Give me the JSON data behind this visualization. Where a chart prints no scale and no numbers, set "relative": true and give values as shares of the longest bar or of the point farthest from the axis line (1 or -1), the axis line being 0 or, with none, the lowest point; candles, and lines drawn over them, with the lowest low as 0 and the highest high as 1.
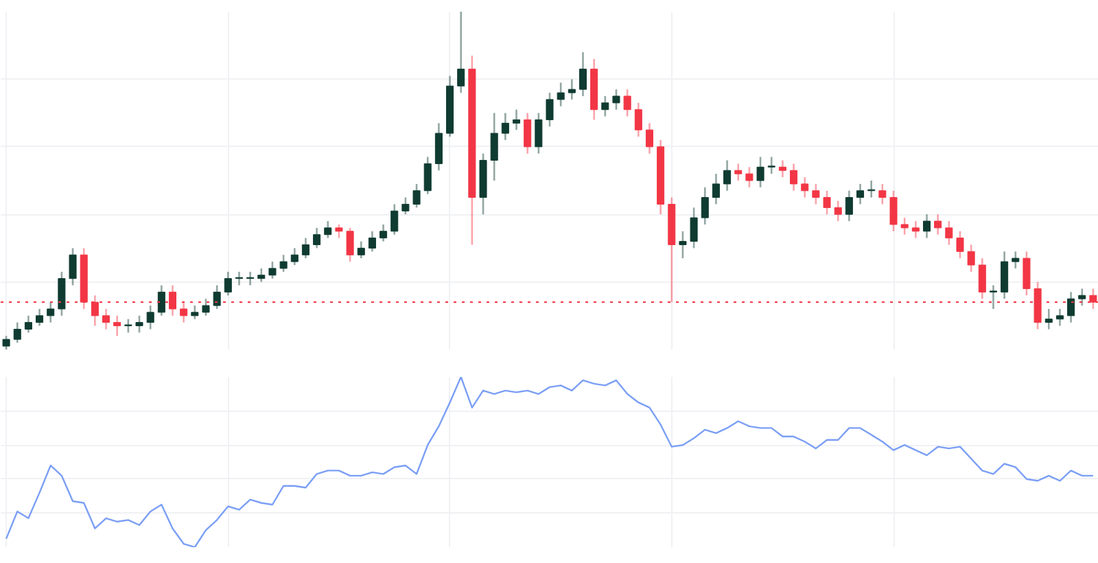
{
  "chart_data": [
    {
      "type": "candlestick",
      "relative": true,
      "grid": true,
      "categories": [
        null,
        null,
        null,
        null,
        null,
        null,
        null,
        null,
        null,
        null,
        null,
        null,
        null,
        null,
        null,
        null,
        null,
        null,
        null,
        null,
        null,
        null,
        null,
        null,
        null,
        null,
        null,
        null,
        null,
        null,
        null,
        null,
        null,
        null,
        null,
        null,
        null,
        null,
        null,
        null,
        null,
        null,
        null,
        null,
        null,
        null,
        null,
        null,
        null,
        null,
        null,
        null,
        null,
        null,
        null,
        null,
        null,
        null,
        null,
        null,
        null,
        null,
        null,
        null,
        null,
        null,
        null,
        null,
        null,
        null,
        null,
        null,
        null,
        null,
        null,
        null,
        null,
        null,
        null,
        null,
        null,
        null,
        null,
        null,
        null,
        null,
        null,
        null,
        null,
        null,
        null,
        null,
        null,
        null,
        null,
        null,
        null,
        null,
        null
      ],
      "ohlc": [
        [
          0.01,
          0.04,
          0.0,
          0.03
        ],
        [
          0.03,
          0.08,
          0.02,
          0.06
        ],
        [
          0.06,
          0.1,
          0.05,
          0.08
        ],
        [
          0.08,
          0.12,
          0.07,
          0.1
        ],
        [
          0.1,
          0.14,
          0.08,
          0.12
        ],
        [
          0.12,
          0.23,
          0.1,
          0.21
        ],
        [
          0.21,
          0.3,
          0.19,
          0.28
        ],
        [
          0.28,
          0.3,
          0.12,
          0.14
        ],
        [
          0.14,
          0.16,
          0.07,
          0.1
        ],
        [
          0.1,
          0.12,
          0.06,
          0.08
        ],
        [
          0.08,
          0.1,
          0.04,
          0.07
        ],
        [
          0.07,
          0.09,
          0.05,
          0.07
        ],
        [
          0.07,
          0.1,
          0.05,
          0.08
        ],
        [
          0.08,
          0.13,
          0.06,
          0.11
        ],
        [
          0.11,
          0.19,
          0.1,
          0.17
        ],
        [
          0.17,
          0.19,
          0.1,
          0.12
        ],
        [
          0.12,
          0.14,
          0.08,
          0.1
        ],
        [
          0.1,
          0.13,
          0.09,
          0.11
        ],
        [
          0.11,
          0.15,
          0.1,
          0.13
        ],
        [
          0.13,
          0.19,
          0.12,
          0.17
        ],
        [
          0.17,
          0.23,
          0.16,
          0.21
        ],
        [
          0.21,
          0.23,
          0.19,
          0.21
        ],
        [
          0.21,
          0.23,
          0.19,
          0.21
        ],
        [
          0.21,
          0.24,
          0.2,
          0.22
        ],
        [
          0.22,
          0.26,
          0.21,
          0.24
        ],
        [
          0.24,
          0.28,
          0.23,
          0.26
        ],
        [
          0.26,
          0.3,
          0.25,
          0.28
        ],
        [
          0.28,
          0.33,
          0.27,
          0.31
        ],
        [
          0.31,
          0.36,
          0.3,
          0.34
        ],
        [
          0.34,
          0.38,
          0.33,
          0.36
        ],
        [
          0.36,
          0.37,
          0.33,
          0.35
        ],
        [
          0.35,
          0.36,
          0.26,
          0.28
        ],
        [
          0.28,
          0.32,
          0.27,
          0.3
        ],
        [
          0.3,
          0.35,
          0.29,
          0.33
        ],
        [
          0.33,
          0.37,
          0.32,
          0.35
        ],
        [
          0.35,
          0.43,
          0.34,
          0.41
        ],
        [
          0.41,
          0.45,
          0.4,
          0.43
        ],
        [
          0.43,
          0.49,
          0.42,
          0.47
        ],
        [
          0.47,
          0.57,
          0.46,
          0.55
        ],
        [
          0.55,
          0.67,
          0.53,
          0.64
        ],
        [
          0.64,
          0.81,
          0.63,
          0.78
        ],
        [
          0.78,
          1.0,
          0.76,
          0.83
        ],
        [
          0.83,
          0.87,
          0.31,
          0.45
        ],
        [
          0.45,
          0.58,
          0.4,
          0.56
        ],
        [
          0.56,
          0.7,
          0.5,
          0.64
        ],
        [
          0.64,
          0.7,
          0.62,
          0.67
        ],
        [
          0.67,
          0.71,
          0.65,
          0.68
        ],
        [
          0.68,
          0.7,
          0.58,
          0.6
        ],
        [
          0.6,
          0.7,
          0.58,
          0.68
        ],
        [
          0.68,
          0.76,
          0.66,
          0.74
        ],
        [
          0.74,
          0.79,
          0.72,
          0.76
        ],
        [
          0.76,
          0.8,
          0.74,
          0.77
        ],
        [
          0.77,
          0.88,
          0.75,
          0.83
        ],
        [
          0.83,
          0.86,
          0.68,
          0.71
        ],
        [
          0.71,
          0.75,
          0.69,
          0.73
        ],
        [
          0.73,
          0.77,
          0.71,
          0.75
        ],
        [
          0.75,
          0.77,
          0.69,
          0.71
        ],
        [
          0.71,
          0.73,
          0.63,
          0.65
        ],
        [
          0.65,
          0.67,
          0.58,
          0.6
        ],
        [
          0.6,
          0.62,
          0.4,
          0.43
        ],
        [
          0.43,
          0.45,
          0.14,
          0.31
        ],
        [
          0.31,
          0.35,
          0.27,
          0.32
        ],
        [
          0.32,
          0.42,
          0.3,
          0.39
        ],
        [
          0.39,
          0.48,
          0.37,
          0.45
        ],
        [
          0.45,
          0.52,
          0.43,
          0.49
        ],
        [
          0.49,
          0.56,
          0.47,
          0.53
        ],
        [
          0.53,
          0.55,
          0.5,
          0.52
        ],
        [
          0.52,
          0.54,
          0.48,
          0.5
        ],
        [
          0.5,
          0.57,
          0.48,
          0.54
        ],
        [
          0.54,
          0.57,
          0.52,
          0.54
        ],
        [
          0.54,
          0.56,
          0.51,
          0.53
        ],
        [
          0.53,
          0.55,
          0.47,
          0.49
        ],
        [
          0.49,
          0.51,
          0.45,
          0.47
        ],
        [
          0.47,
          0.49,
          0.43,
          0.45
        ],
        [
          0.45,
          0.47,
          0.4,
          0.42
        ],
        [
          0.42,
          0.44,
          0.38,
          0.4
        ],
        [
          0.4,
          0.47,
          0.38,
          0.45
        ],
        [
          0.45,
          0.49,
          0.43,
          0.47
        ],
        [
          0.47,
          0.5,
          0.45,
          0.47
        ],
        [
          0.47,
          0.49,
          0.43,
          0.45
        ],
        [
          0.45,
          0.47,
          0.35,
          0.37
        ],
        [
          0.37,
          0.39,
          0.34,
          0.36
        ],
        [
          0.36,
          0.38,
          0.33,
          0.35
        ],
        [
          0.35,
          0.4,
          0.33,
          0.38
        ],
        [
          0.38,
          0.4,
          0.34,
          0.36
        ],
        [
          0.36,
          0.38,
          0.31,
          0.33
        ],
        [
          0.33,
          0.35,
          0.27,
          0.29
        ],
        [
          0.29,
          0.31,
          0.23,
          0.25
        ],
        [
          0.25,
          0.27,
          0.15,
          0.17
        ],
        [
          0.17,
          0.19,
          0.12,
          0.17
        ],
        [
          0.17,
          0.29,
          0.15,
          0.26
        ],
        [
          0.26,
          0.29,
          0.24,
          0.27
        ],
        [
          0.27,
          0.29,
          0.16,
          0.18
        ],
        [
          0.18,
          0.2,
          0.06,
          0.08
        ],
        [
          0.08,
          0.12,
          0.06,
          0.09
        ],
        [
          0.09,
          0.12,
          0.07,
          0.1
        ],
        [
          0.1,
          0.17,
          0.08,
          0.15
        ],
        [
          0.15,
          0.18,
          0.13,
          0.16
        ],
        [
          0.16,
          0.18,
          0.12,
          0.14
        ]
      ],
      "colors": [
        "#0f3b31",
        "#0f3b31",
        "#0f3b31",
        "#0f3b31",
        "#0f3b31",
        "#0f3b31",
        "#0f3b31",
        "#f23645",
        "#f23645",
        "#f23645",
        "#f23645",
        "#0f3b31",
        "#0f3b31",
        "#0f3b31",
        "#0f3b31",
        "#f23645",
        "#f23645",
        "#0f3b31",
        "#0f3b31",
        "#0f3b31",
        "#0f3b31",
        "#0f3b31",
        "#0f3b31",
        "#0f3b31",
        "#0f3b31",
        "#0f3b31",
        "#0f3b31",
        "#0f3b31",
        "#0f3b31",
        "#0f3b31",
        "#f23645",
        "#f23645",
        "#0f3b31",
        "#0f3b31",
        "#0f3b31",
        "#0f3b31",
        "#0f3b31",
        "#0f3b31",
        "#0f3b31",
        "#0f3b31",
        "#0f3b31",
        "#0f3b31",
        "#f23645",
        "#0f3b31",
        "#0f3b31",
        "#0f3b31",
        "#0f3b31",
        "#f23645",
        "#0f3b31",
        "#0f3b31",
        "#0f3b31",
        "#0f3b31",
        "#0f3b31",
        "#f23645",
        "#0f3b31",
        "#0f3b31",
        "#f23645",
        "#f23645",
        "#f23645",
        "#f23645",
        "#f23645",
        "#0f3b31",
        "#0f3b31",
        "#0f3b31",
        "#0f3b31",
        "#0f3b31",
        "#f23645",
        "#f23645",
        "#0f3b31",
        "#0f3b31",
        "#f23645",
        "#f23645",
        "#f23645",
        "#f23645",
        "#f23645",
        "#f23645",
        "#0f3b31",
        "#0f3b31",
        "#0f3b31",
        "#f23645",
        "#f23645",
        "#f23645",
        "#f23645",
        "#0f3b31",
        "#f23645",
        "#f23645",
        "#f23645",
        "#f23645",
        "#f23645",
        "#0f3b31",
        "#0f3b31",
        "#0f3b31",
        "#f23645",
        "#f23645",
        "#0f3b31",
        "#0f3b31",
        "#0f3b31",
        "#0f3b31",
        "#f23645"
      ],
      "ref_lines": [
        {
          "axis": "y",
          "value": 0.14,
          "color": "#f23645",
          "line_style": "dotted"
        }
      ]
    },
    {
      "type": "line",
      "relative": true,
      "grid": true,
      "marker": "none",
      "line_style": "solid",
      "categories": [
        null,
        null,
        null,
        null,
        null,
        null,
        null,
        null,
        null,
        null,
        null,
        null,
        null,
        null,
        null,
        null,
        null,
        null,
        null,
        null,
        null,
        null,
        null,
        null,
        null,
        null,
        null,
        null,
        null,
        null,
        null,
        null,
        null,
        null,
        null,
        null,
        null,
        null,
        null,
        null,
        null,
        null,
        null,
        null,
        null,
        null,
        null,
        null,
        null,
        null,
        null,
        null,
        null,
        null,
        null,
        null,
        null,
        null,
        null,
        null,
        null,
        null,
        null,
        null,
        null,
        null,
        null,
        null,
        null,
        null,
        null,
        null,
        null,
        null,
        null,
        null,
        null,
        null,
        null,
        null,
        null,
        null,
        null,
        null,
        null,
        null,
        null,
        null,
        null,
        null,
        null,
        null,
        null,
        null,
        null,
        null,
        null,
        null,
        null
      ],
      "series": [
        {
          "color": "#7b9ff5",
          "values": [
            0.05,
            0.21,
            0.17,
            0.32,
            0.48,
            0.42,
            0.27,
            0.26,
            0.11,
            0.17,
            0.15,
            0.16,
            0.13,
            0.21,
            0.25,
            0.11,
            0.02,
            0.0,
            0.1,
            0.16,
            0.24,
            0.22,
            0.28,
            0.26,
            0.25,
            0.36,
            0.36,
            0.35,
            0.43,
            0.45,
            0.45,
            0.42,
            0.42,
            0.44,
            0.43,
            0.47,
            0.48,
            0.43,
            0.6,
            0.71,
            0.85,
            1.0,
            0.82,
            0.92,
            0.9,
            0.92,
            0.91,
            0.92,
            0.9,
            0.94,
            0.95,
            0.92,
            0.98,
            0.96,
            0.95,
            0.98,
            0.9,
            0.85,
            0.82,
            0.72,
            0.59,
            0.6,
            0.64,
            0.69,
            0.67,
            0.7,
            0.74,
            0.71,
            0.7,
            0.7,
            0.65,
            0.65,
            0.62,
            0.58,
            0.63,
            0.63,
            0.7,
            0.7,
            0.66,
            0.62,
            0.57,
            0.6,
            0.57,
            0.54,
            0.59,
            0.58,
            0.59,
            0.52,
            0.45,
            0.43,
            0.49,
            0.47,
            0.4,
            0.39,
            0.42,
            0.39,
            0.45,
            0.42,
            0.42
          ]
        }
      ]
    }
  ]
}
